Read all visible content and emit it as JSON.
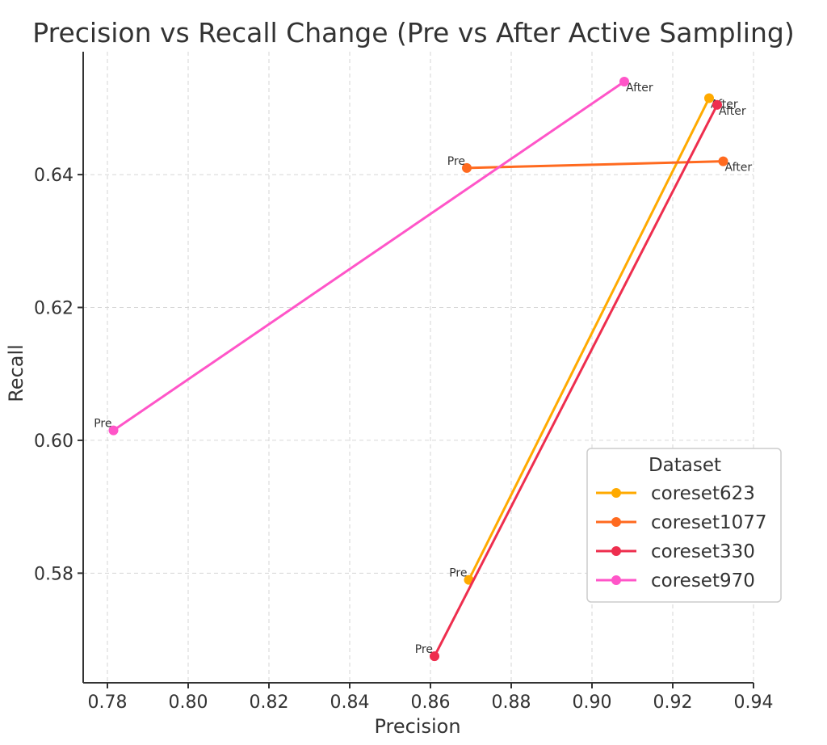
{
  "chart_data": {
    "type": "line",
    "title": "Precision vs Recall Change (Pre vs After Active Sampling)",
    "xlabel": "Precision",
    "ylabel": "Recall",
    "xlim": [
      0.774,
      0.94
    ],
    "ylim": [
      0.5635,
      0.6585
    ],
    "xticks": [
      0.78,
      0.8,
      0.82,
      0.84,
      0.86,
      0.88,
      0.9,
      0.92,
      0.94
    ],
    "yticks": [
      0.58,
      0.6,
      0.62,
      0.64
    ],
    "grid": true,
    "legend": {
      "title": "Dataset",
      "placement": "lower-right"
    },
    "series": [
      {
        "name": "coreset623",
        "color": "#FFAA00",
        "labels": [
          "Pre",
          "After"
        ],
        "x": [
          0.8695,
          0.929
        ],
        "y": [
          0.579,
          0.6515
        ]
      },
      {
        "name": "coreset1077",
        "color": "#FF6A1F",
        "labels": [
          "Pre",
          "After"
        ],
        "x": [
          0.869,
          0.9325
        ],
        "y": [
          0.641,
          0.642
        ]
      },
      {
        "name": "coreset330",
        "color": "#EE2E4E",
        "labels": [
          "Pre",
          "After"
        ],
        "x": [
          0.861,
          0.931
        ],
        "y": [
          0.5675,
          0.6505
        ]
      },
      {
        "name": "coreset970",
        "color": "#FF55C8",
        "labels": [
          "Pre",
          "After"
        ],
        "x": [
          0.7815,
          0.908
        ],
        "y": [
          0.6015,
          0.654
        ]
      }
    ]
  }
}
